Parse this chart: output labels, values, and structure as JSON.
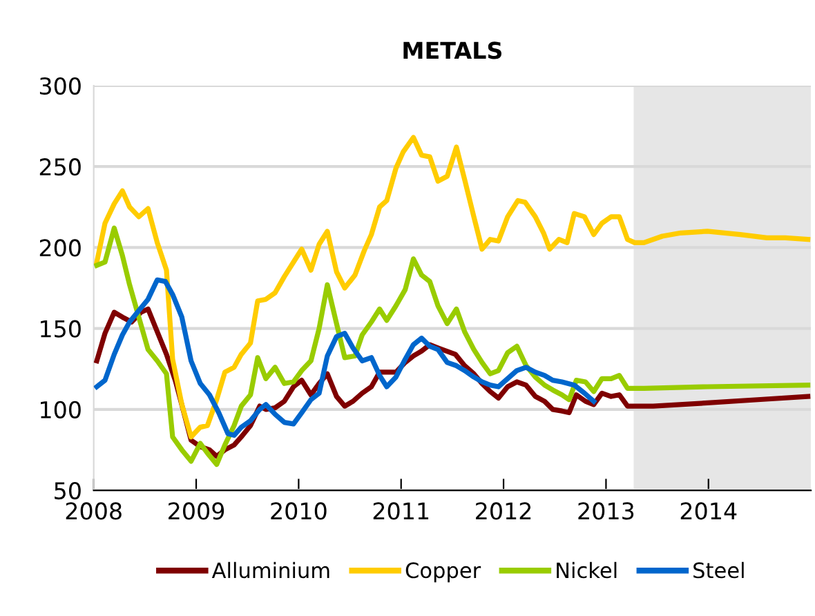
{
  "chart_data": {
    "type": "line",
    "title": "METALS",
    "xlim": [
      2008,
      2015
    ],
    "xticks": [
      2008,
      2009,
      2010,
      2011,
      2012,
      2013,
      2014
    ],
    "ylim": [
      50,
      300
    ],
    "yticks": [
      50,
      100,
      150,
      200,
      250,
      300
    ],
    "grid": "y",
    "legend": "bottom",
    "marker": "none",
    "line_style": "solid",
    "bands": [
      {
        "axis": "x",
        "from": 2013.27,
        "to": 2015,
        "label": null,
        "color": "#e6e6e6"
      }
    ],
    "series": [
      {
        "name": "Alluminium",
        "color": "#7f0000",
        "x": [
          2008.03,
          2008.11,
          2008.2,
          2008.28,
          2008.37,
          2008.46,
          2008.53,
          2008.62,
          2008.71,
          2008.8,
          2008.88,
          2008.95,
          2009.04,
          2009.13,
          2009.2,
          2009.28,
          2009.37,
          2009.44,
          2009.53,
          2009.62,
          2009.68,
          2009.77,
          2009.86,
          2009.95,
          2010.03,
          2010.12,
          2010.2,
          2010.28,
          2010.37,
          2010.45,
          2010.53,
          2010.62,
          2010.71,
          2010.79,
          2010.86,
          2010.95,
          2011.04,
          2011.12,
          2011.2,
          2011.28,
          2011.36,
          2011.53,
          2011.62,
          2011.71,
          2011.79,
          2011.87,
          2011.95,
          2012.04,
          2012.13,
          2012.22,
          2012.31,
          2012.4,
          2012.48,
          2012.57,
          2012.64,
          2012.71,
          2012.8,
          2012.88,
          2012.96,
          2013.05,
          2013.13,
          2013.21,
          2013.46,
          2013.99,
          2014.48,
          2014.97
        ],
        "values": [
          130,
          147,
          160,
          157,
          154,
          160,
          162,
          148,
          134,
          117,
          98,
          81,
          77,
          75,
          71,
          75,
          78,
          83,
          90,
          102,
          100,
          101,
          105,
          114,
          118,
          109,
          116,
          122,
          108,
          102,
          105,
          110,
          114,
          123,
          123,
          123,
          129,
          133,
          136,
          140,
          138,
          134,
          127,
          122,
          116,
          111,
          107,
          114,
          117,
          115,
          108,
          105,
          100,
          99,
          98,
          109,
          105,
          103,
          110,
          108,
          109,
          102,
          102,
          104,
          106,
          108
        ]
      },
      {
        "name": "Copper",
        "color": "#ffcc00",
        "x": [
          2008.03,
          2008.11,
          2008.2,
          2008.28,
          2008.35,
          2008.44,
          2008.53,
          2008.62,
          2008.71,
          2008.77,
          2008.86,
          2008.95,
          2009.04,
          2009.11,
          2009.2,
          2009.28,
          2009.37,
          2009.44,
          2009.53,
          2009.6,
          2009.68,
          2009.77,
          2009.86,
          2009.95,
          2010.03,
          2010.12,
          2010.2,
          2010.28,
          2010.37,
          2010.45,
          2010.55,
          2010.64,
          2010.71,
          2010.79,
          2010.86,
          2010.95,
          2011.02,
          2011.12,
          2011.2,
          2011.28,
          2011.36,
          2011.45,
          2011.54,
          2011.62,
          2011.71,
          2011.79,
          2011.87,
          2011.95,
          2012.04,
          2012.14,
          2012.21,
          2012.31,
          2012.39,
          2012.45,
          2012.54,
          2012.62,
          2012.69,
          2012.79,
          2012.88,
          2012.96,
          2013.05,
          2013.13,
          2013.21,
          2013.28,
          2013.37,
          2013.55,
          2013.73,
          2013.99,
          2014.31,
          2014.57,
          2014.75,
          2014.97
        ],
        "values": [
          191,
          215,
          227,
          235,
          225,
          219,
          224,
          203,
          186,
          131,
          103,
          83,
          89,
          90,
          106,
          123,
          126,
          134,
          141,
          167,
          168,
          172,
          182,
          191,
          199,
          186,
          202,
          210,
          185,
          175,
          183,
          198,
          208,
          225,
          229,
          249,
          259,
          268,
          257,
          256,
          241,
          244,
          262,
          242,
          219,
          199,
          205,
          204,
          219,
          229,
          228,
          219,
          209,
          199,
          205,
          203,
          221,
          219,
          208,
          215,
          219,
          219,
          205,
          203,
          203,
          207,
          209,
          210,
          208,
          206,
          206,
          205
        ]
      },
      {
        "name": "Nickel",
        "color": "#99cc00",
        "x": [
          2008.03,
          2008.11,
          2008.2,
          2008.28,
          2008.35,
          2008.44,
          2008.53,
          2008.62,
          2008.71,
          2008.77,
          2008.86,
          2008.95,
          2009.04,
          2009.11,
          2009.2,
          2009.28,
          2009.37,
          2009.44,
          2009.53,
          2009.6,
          2009.68,
          2009.77,
          2009.86,
          2009.95,
          2010.03,
          2010.12,
          2010.2,
          2010.28,
          2010.37,
          2010.45,
          2010.55,
          2010.62,
          2010.71,
          2010.79,
          2010.86,
          2010.95,
          2011.04,
          2011.12,
          2011.2,
          2011.28,
          2011.36,
          2011.45,
          2011.54,
          2011.62,
          2011.71,
          2011.79,
          2011.87,
          2011.95,
          2012.04,
          2012.13,
          2012.22,
          2012.31,
          2012.4,
          2012.48,
          2012.57,
          2012.64,
          2012.71,
          2012.8,
          2012.88,
          2012.96,
          2013.05,
          2013.13,
          2013.21,
          2013.37,
          2013.99,
          2014.97
        ],
        "values": [
          189,
          191,
          212,
          195,
          177,
          157,
          137,
          130,
          122,
          83,
          75,
          68,
          79,
          73,
          66,
          78,
          90,
          102,
          109,
          132,
          119,
          126,
          116,
          117,
          124,
          130,
          150,
          177,
          153,
          132,
          133,
          146,
          154,
          162,
          155,
          164,
          174,
          193,
          183,
          179,
          164,
          153,
          162,
          148,
          137,
          129,
          122,
          124,
          135,
          139,
          127,
          120,
          115,
          112,
          109,
          106,
          118,
          117,
          111,
          119,
          119,
          121,
          113,
          113,
          114,
          115
        ]
      },
      {
        "name": "Steel",
        "color": "#0066cc",
        "x": [
          2008.03,
          2008.11,
          2008.2,
          2008.28,
          2008.35,
          2008.44,
          2008.53,
          2008.62,
          2008.7,
          2008.77,
          2008.86,
          2008.95,
          2009.04,
          2009.13,
          2009.22,
          2009.31,
          2009.37,
          2009.44,
          2009.53,
          2009.62,
          2009.68,
          2009.77,
          2009.86,
          2009.95,
          2010.03,
          2010.12,
          2010.2,
          2010.28,
          2010.37,
          2010.45,
          2010.53,
          2010.62,
          2010.71,
          2010.79,
          2010.86,
          2010.95,
          2011.04,
          2011.12,
          2011.2,
          2011.28,
          2011.36,
          2011.45,
          2011.54,
          2011.62,
          2011.71,
          2011.79,
          2011.87,
          2011.95,
          2012.04,
          2012.13,
          2012.22,
          2012.31,
          2012.4,
          2012.48,
          2012.57,
          2012.69,
          2012.79,
          2012.88
        ],
        "values": [
          114,
          118,
          134,
          146,
          154,
          161,
          168,
          180,
          179,
          171,
          157,
          130,
          116,
          109,
          98,
          85,
          84,
          89,
          93,
          100,
          103,
          97,
          92,
          91,
          98,
          106,
          110,
          133,
          145,
          147,
          138,
          130,
          132,
          121,
          114,
          120,
          131,
          140,
          144,
          139,
          137,
          129,
          127,
          124,
          120,
          117,
          115,
          114,
          119,
          124,
          126,
          123,
          121,
          118,
          117,
          115,
          110,
          105
        ]
      }
    ]
  }
}
